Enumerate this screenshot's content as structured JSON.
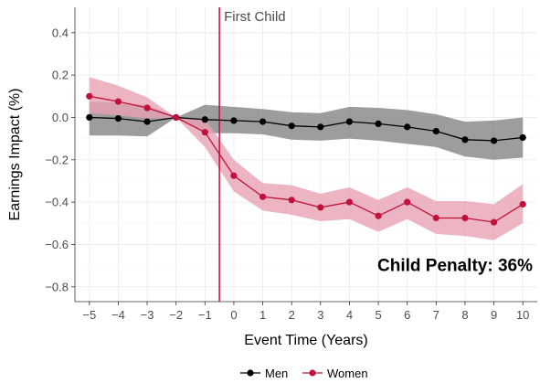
{
  "chart_data": {
    "type": "line",
    "xlabel": "Event Time (Years)",
    "ylabel": "Earnings Impact (%)",
    "x": [
      -5,
      -4,
      -3,
      -2,
      -1,
      0,
      1,
      2,
      3,
      4,
      5,
      6,
      7,
      8,
      9,
      10
    ],
    "xticks": [
      "−5",
      "−4",
      "−3",
      "−2",
      "−1",
      "0",
      "1",
      "2",
      "3",
      "4",
      "5",
      "6",
      "7",
      "8",
      "9",
      "10"
    ],
    "yticks": [
      0.4,
      0.2,
      0.0,
      -0.2,
      -0.4,
      -0.6,
      -0.8
    ],
    "ytick_labels": [
      "0.4",
      "0.2",
      "0.0",
      "−0.2",
      "−0.4",
      "−0.6",
      "−0.8"
    ],
    "xlim": [
      -5.5,
      10.5
    ],
    "ylim": [
      -0.87,
      0.52
    ],
    "grid": true,
    "legend_position": "bottom",
    "series": [
      {
        "name": "Men",
        "color": "#000000",
        "band_color": "#8c8c8c",
        "values": [
          0.0,
          -0.005,
          -0.02,
          0.0,
          -0.01,
          -0.015,
          -0.02,
          -0.04,
          -0.045,
          -0.02,
          -0.03,
          -0.045,
          -0.065,
          -0.105,
          -0.11,
          -0.095
        ],
        "lower": [
          -0.085,
          -0.085,
          -0.09,
          0.0,
          -0.075,
          -0.075,
          -0.08,
          -0.105,
          -0.11,
          -0.1,
          -0.11,
          -0.125,
          -0.14,
          -0.185,
          -0.2,
          -0.19
        ],
        "upper": [
          0.075,
          0.07,
          0.06,
          0.0,
          0.06,
          0.05,
          0.04,
          0.025,
          0.02,
          0.05,
          0.045,
          0.035,
          0.015,
          -0.02,
          -0.015,
          0.0
        ]
      },
      {
        "name": "Women",
        "color": "#c0113a",
        "band_color": "#e8a3b5",
        "values": [
          0.1,
          0.075,
          0.045,
          0.0,
          -0.07,
          -0.275,
          -0.375,
          -0.39,
          -0.425,
          -0.4,
          -0.465,
          -0.4,
          -0.475,
          -0.475,
          -0.495,
          -0.41
        ],
        "lower": [
          0.02,
          0.01,
          -0.005,
          0.0,
          -0.14,
          -0.35,
          -0.44,
          -0.46,
          -0.49,
          -0.48,
          -0.54,
          -0.48,
          -0.55,
          -0.56,
          -0.58,
          -0.5
        ],
        "upper": [
          0.19,
          0.15,
          0.095,
          0.0,
          -0.005,
          -0.2,
          -0.31,
          -0.32,
          -0.36,
          -0.33,
          -0.39,
          -0.33,
          -0.395,
          -0.395,
          -0.41,
          -0.315
        ]
      }
    ],
    "event_line": {
      "x": -0.5,
      "label": "First Child",
      "color": "#c0113a"
    },
    "annotation": "Child Penalty: 36%"
  }
}
